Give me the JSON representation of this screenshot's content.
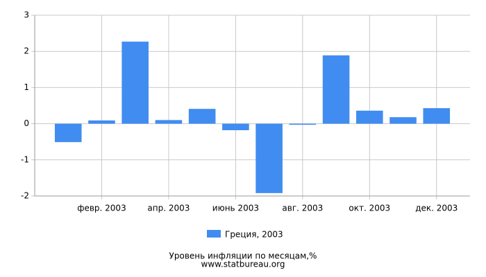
{
  "chart_data": {
    "type": "bar",
    "title": "Уровень инфляции по месяцам,%",
    "subtitle": "www.statbureau.org",
    "categories": [
      null,
      "февр. 2003",
      null,
      "апр. 2003",
      null,
      "июнь 2003",
      null,
      "авг. 2003",
      null,
      "окт. 2003",
      null,
      "дек. 2003"
    ],
    "series": [
      {
        "name": "Греция, 2003",
        "color": "#418cf0",
        "values": [
          -0.51,
          0.09,
          2.27,
          0.1,
          0.41,
          -0.18,
          -1.92,
          -0.03,
          1.89,
          0.36,
          0.18,
          0.43
        ]
      }
    ],
    "ylim": [
      -2,
      3
    ],
    "yticks": [
      -2,
      -1,
      0,
      1,
      2,
      3
    ],
    "grid": true
  }
}
